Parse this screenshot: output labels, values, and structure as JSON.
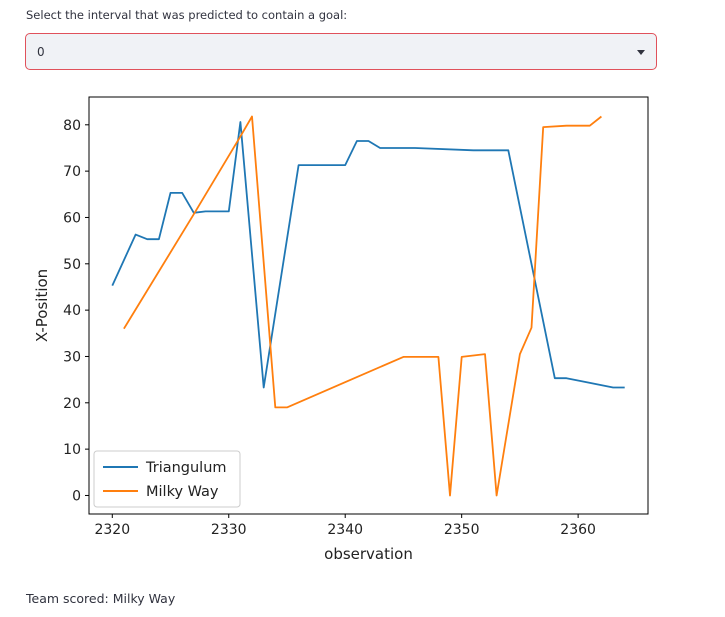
{
  "prompt": {
    "label": "Select the interval that was predicted to contain a goal:"
  },
  "select": {
    "value": "0"
  },
  "result": {
    "text": "Team scored: Milky Way"
  },
  "chart_data": {
    "type": "line",
    "xlabel": "observation",
    "ylabel": "X-Position",
    "xlim": [
      2318,
      2366
    ],
    "ylim": [
      -4,
      86
    ],
    "xticks": [
      2320,
      2330,
      2340,
      2350,
      2360
    ],
    "yticks": [
      0,
      10,
      20,
      30,
      40,
      50,
      60,
      70,
      80
    ],
    "grid": false,
    "legend": "lower-left",
    "series": [
      {
        "name": "Triangulum",
        "color": "#1f77b4",
        "x": [
          2320,
          2322,
          2323,
          2324,
          2325,
          2326,
          2327,
          2328,
          2329,
          2330,
          2331,
          2333,
          2336,
          2340,
          2341,
          2342,
          2343,
          2346,
          2351,
          2354,
          2358,
          2359,
          2363,
          2364
        ],
        "y": [
          45.3,
          56.3,
          55.3,
          55.3,
          65.3,
          65.3,
          61,
          61.3,
          61.3,
          61.3,
          80.6,
          23.3,
          71.3,
          71.3,
          76.5,
          76.5,
          75,
          75,
          74.5,
          74.5,
          25.3,
          25.3,
          23.3,
          23.3
        ]
      },
      {
        "name": "Milky Way",
        "color": "#ff7f0e",
        "x": [
          2321,
          2327,
          2331,
          2332,
          2334,
          2335,
          2345,
          2348,
          2349,
          2350,
          2352,
          2353,
          2355,
          2356,
          2357,
          2359,
          2361,
          2362
        ],
        "y": [
          36,
          60.7,
          77.5,
          81.8,
          19,
          19,
          29.9,
          29.9,
          0,
          29.9,
          30.5,
          0,
          30.5,
          36.2,
          79.5,
          79.8,
          79.8,
          81.8
        ]
      }
    ]
  }
}
